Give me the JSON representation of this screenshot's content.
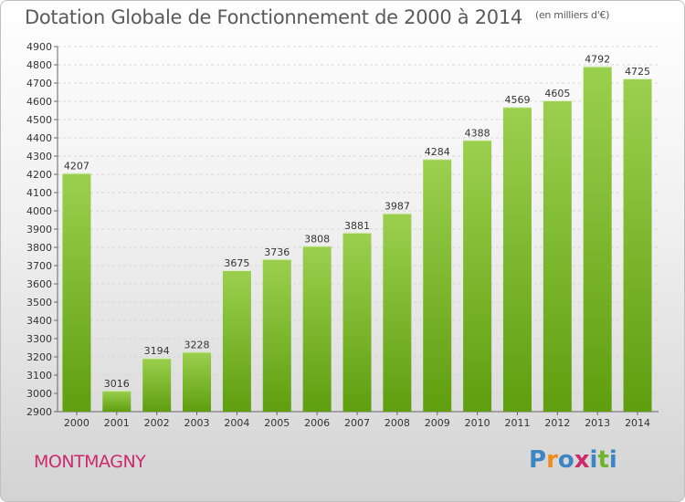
{
  "chart_data": {
    "type": "bar",
    "title": "Dotation Globale de Fonctionnement de 2000 à 2014",
    "subtitle": "(en milliers d'€)",
    "categories": [
      "2000",
      "2001",
      "2002",
      "2003",
      "2004",
      "2005",
      "2006",
      "2007",
      "2008",
      "2009",
      "2010",
      "2011",
      "2012",
      "2013",
      "2014"
    ],
    "values": [
      4207,
      3016,
      3194,
      3228,
      3675,
      3736,
      3808,
      3881,
      3987,
      4284,
      4388,
      4569,
      4605,
      4792,
      4725
    ],
    "ylim": [
      2900,
      4900
    ],
    "yticks": [
      2900,
      3000,
      3100,
      3200,
      3300,
      3400,
      3500,
      3600,
      3700,
      3800,
      3900,
      4000,
      4100,
      4200,
      4300,
      4400,
      4500,
      4600,
      4700,
      4800,
      4900
    ],
    "xlabel": "",
    "ylabel": "",
    "grid": true,
    "bar_color_top": "#9bd04f",
    "bar_color_bottom": "#5f9e0f"
  },
  "commune": "MONTMAGNY",
  "logo": {
    "letters": [
      "P",
      "r",
      "o",
      "x",
      "i",
      "t",
      "i"
    ],
    "colors": [
      "#3d86c6",
      "#f08a1c",
      "#3d86c6",
      "#cc2a6b",
      "#3d86c6",
      "#6fb52c",
      "#3d86c6"
    ]
  }
}
